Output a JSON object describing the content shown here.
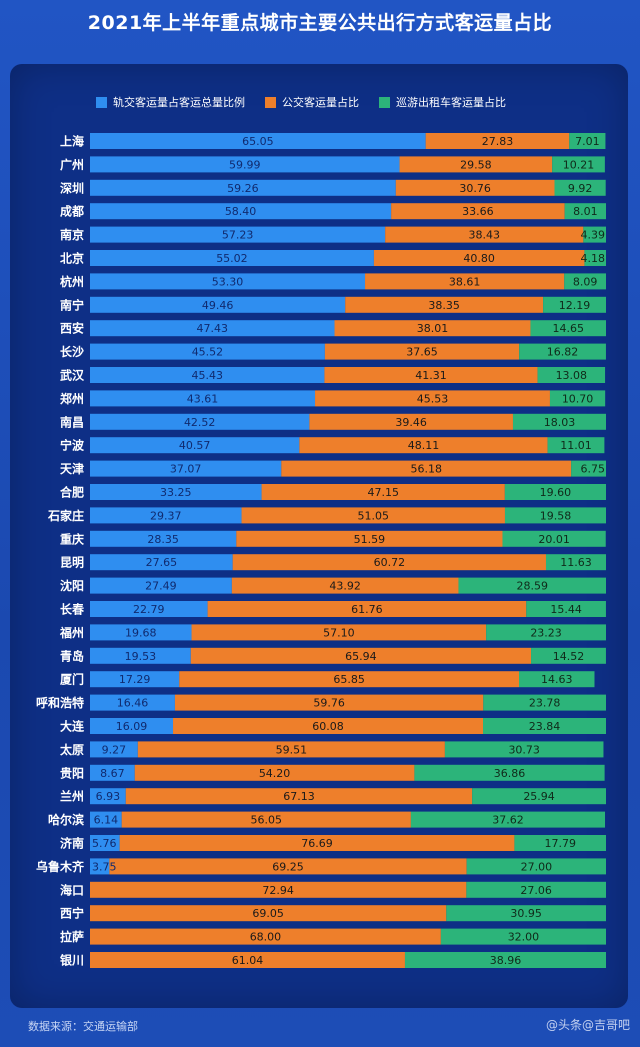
{
  "title": "2021年上半年重点城市主要公共出行方式客运量占比",
  "footer": "数据来源：交通运输部",
  "watermark": "@头条@吉哥吧",
  "colors": {
    "rail": "#2f8ef0",
    "bus": "#ee7f2b",
    "taxi": "#2cb47a",
    "panel": "#0e2f86"
  },
  "chart_data": {
    "type": "bar",
    "orientation": "horizontal",
    "stacked": true,
    "legend_position": "top",
    "series": [
      {
        "name": "轨交客运量占客运总量比例"
      },
      {
        "name": "公交客运量占比"
      },
      {
        "name": "巡游出租车客运量占比"
      }
    ],
    "rows": [
      {
        "city": "上海",
        "rail": "65.05",
        "bus": "27.83",
        "taxi": "7.01"
      },
      {
        "city": "广州",
        "rail": "59.99",
        "bus": "29.58",
        "taxi": "10.21"
      },
      {
        "city": "深圳",
        "rail": "59.26",
        "bus": "30.76",
        "taxi": "9.92"
      },
      {
        "city": "成都",
        "rail": "58.40",
        "bus": "33.66",
        "taxi": "8.01"
      },
      {
        "city": "南京",
        "rail": "57.23",
        "bus": "38.43",
        "taxi": "4.39"
      },
      {
        "city": "北京",
        "rail": "55.02",
        "bus": "40.80",
        "taxi": "4.18"
      },
      {
        "city": "杭州",
        "rail": "53.30",
        "bus": "38.61",
        "taxi": "8.09"
      },
      {
        "city": "南宁",
        "rail": "49.46",
        "bus": "38.35",
        "taxi": "12.19"
      },
      {
        "city": "西安",
        "rail": "47.43",
        "bus": "38.01",
        "taxi": "14.65"
      },
      {
        "city": "长沙",
        "rail": "45.52",
        "bus": "37.65",
        "taxi": "16.82"
      },
      {
        "city": "武汉",
        "rail": "45.43",
        "bus": "41.31",
        "taxi": "13.08"
      },
      {
        "city": "郑州",
        "rail": "43.61",
        "bus": "45.53",
        "taxi": "10.70"
      },
      {
        "city": "南昌",
        "rail": "42.52",
        "bus": "39.46",
        "taxi": "18.03"
      },
      {
        "city": "宁波",
        "rail": "40.57",
        "bus": "48.11",
        "taxi": "11.01"
      },
      {
        "city": "天津",
        "rail": "37.07",
        "bus": "56.18",
        "taxi": "6.75"
      },
      {
        "city": "合肥",
        "rail": "33.25",
        "bus": "47.15",
        "taxi": "19.60"
      },
      {
        "city": "石家庄",
        "rail": "29.37",
        "bus": "51.05",
        "taxi": "19.58"
      },
      {
        "city": "重庆",
        "rail": "28.35",
        "bus": "51.59",
        "taxi": "20.01"
      },
      {
        "city": "昆明",
        "rail": "27.65",
        "bus": "60.72",
        "taxi": "11.63"
      },
      {
        "city": "沈阳",
        "rail": "27.49",
        "bus": "43.92",
        "taxi": "28.59"
      },
      {
        "city": "长春",
        "rail": "22.79",
        "bus": "61.76",
        "taxi": "15.44"
      },
      {
        "city": "福州",
        "rail": "19.68",
        "bus": "57.10",
        "taxi": "23.23"
      },
      {
        "city": "青岛",
        "rail": "19.53",
        "bus": "65.94",
        "taxi": "14.52"
      },
      {
        "city": "厦门",
        "rail": "17.29",
        "bus": "65.85",
        "taxi": "14.63"
      },
      {
        "city": "呼和浩特",
        "rail": "16.46",
        "bus": "59.76",
        "taxi": "23.78"
      },
      {
        "city": "大连",
        "rail": "16.09",
        "bus": "60.08",
        "taxi": "23.84"
      },
      {
        "city": "太原",
        "rail": "9.27",
        "bus": "59.51",
        "taxi": "30.73"
      },
      {
        "city": "贵阳",
        "rail": "8.67",
        "bus": "54.20",
        "taxi": "36.86"
      },
      {
        "city": "兰州",
        "rail": "6.93",
        "bus": "67.13",
        "taxi": "25.94"
      },
      {
        "city": "哈尔滨",
        "rail": "6.14",
        "bus": "56.05",
        "taxi": "37.62"
      },
      {
        "city": "济南",
        "rail": "5.76",
        "bus": "76.69",
        "taxi": "17.79"
      },
      {
        "city": "乌鲁木齐",
        "rail": "3.75",
        "bus": "69.25",
        "taxi": "27.00"
      },
      {
        "city": "海口",
        "rail": "",
        "bus": "72.94",
        "taxi": "27.06"
      },
      {
        "city": "西宁",
        "rail": "",
        "bus": "69.05",
        "taxi": "30.95"
      },
      {
        "city": "拉萨",
        "rail": "",
        "bus": "68.00",
        "taxi": "32.00"
      },
      {
        "city": "银川",
        "rail": "",
        "bus": "61.04",
        "taxi": "38.96"
      }
    ]
  }
}
